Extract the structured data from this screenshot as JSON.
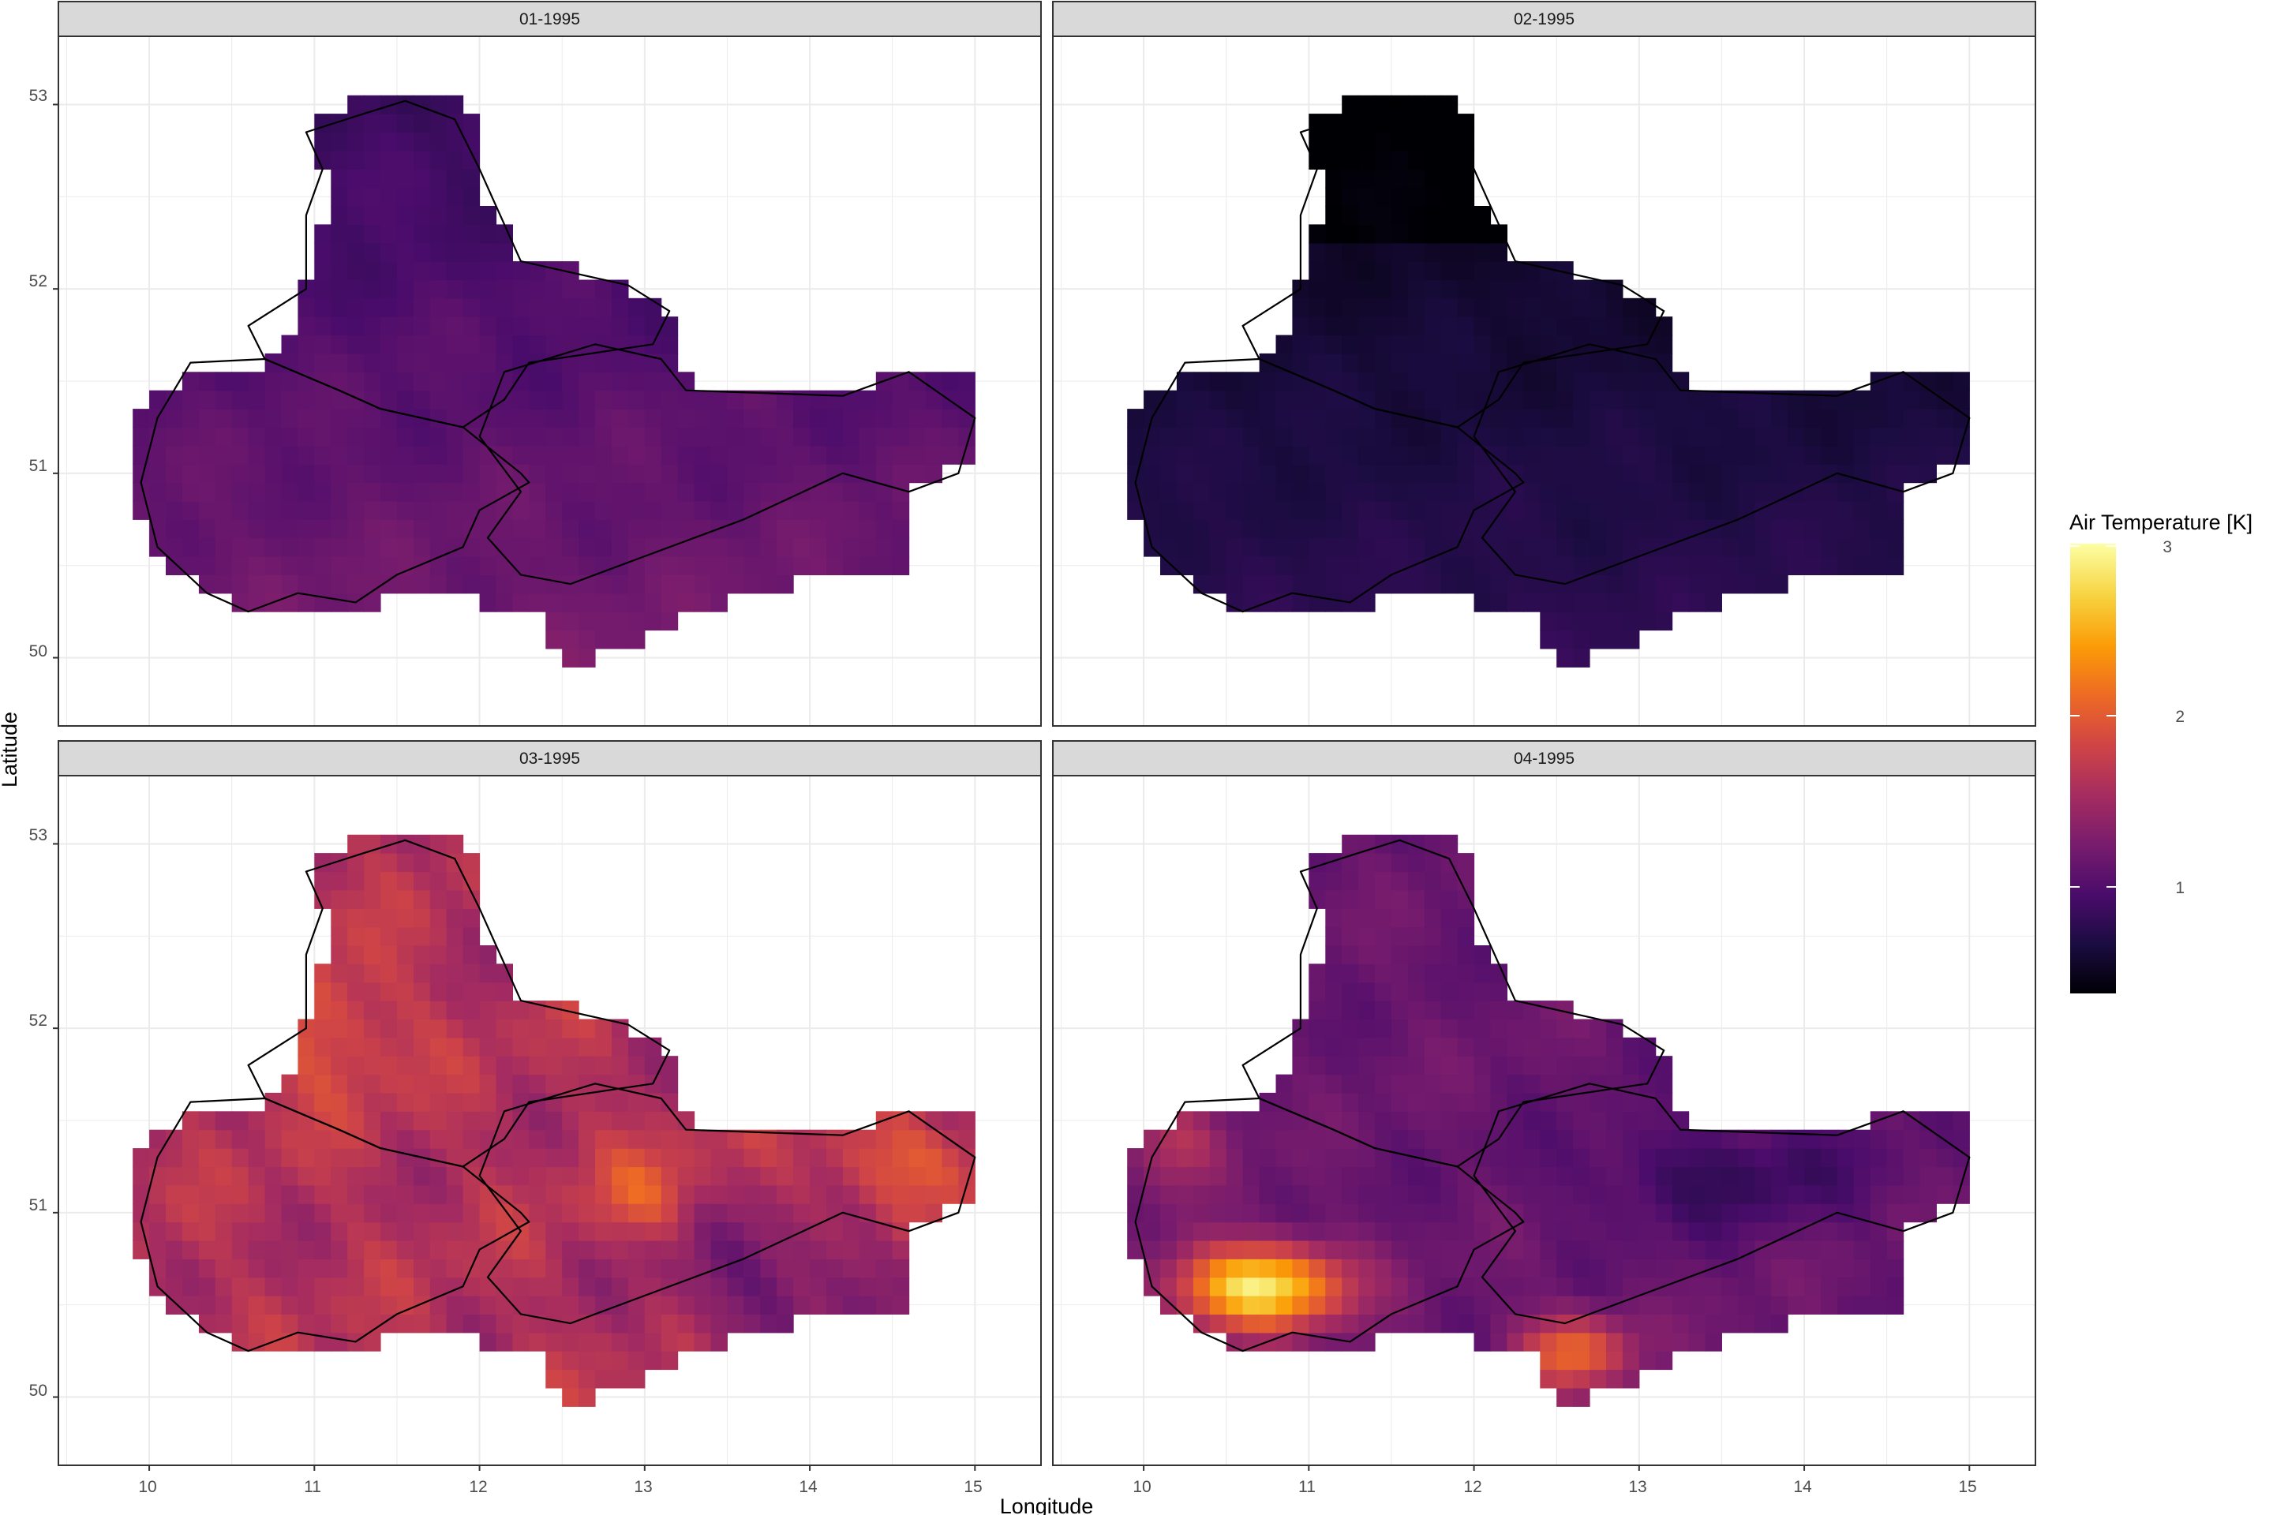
{
  "chart_data": {
    "type": "heatmap",
    "xlabel": "Longitude",
    "ylabel": "Latitude",
    "xlim": [
      9.45,
      15.4
    ],
    "ylim": [
      49.63,
      53.37
    ],
    "x_ticks": [
      10,
      11,
      12,
      13,
      14,
      15
    ],
    "y_ticks": [
      50,
      51,
      52,
      53
    ],
    "grid": true,
    "legend": {
      "title": "Air Temperature [K]",
      "position": "right",
      "range": [
        0.5,
        3.05
      ],
      "ticks": [
        1,
        2,
        3
      ],
      "colormap": "inferno",
      "stops": [
        "#000004",
        "#1b0c41",
        "#4a0c6b",
        "#781c6d",
        "#a52c60",
        "#cf4446",
        "#ed6925",
        "#fb9b06",
        "#f7d13d",
        "#fcffa4"
      ]
    },
    "panels": [
      {
        "label": "01-1995",
        "description": "uniform purple field",
        "base_value": 1.25,
        "variation": 0.35
      },
      {
        "label": "02-1995",
        "description": "very dark field, darkest in north",
        "base_value": 0.75,
        "variation": 0.35
      },
      {
        "label": "03-1995",
        "description": "warm field with orange hotspots in west and east",
        "base_value": 1.75,
        "variation": 0.6
      },
      {
        "label": "04-1995",
        "description": "purple field with yellow hotspot in southwest",
        "base_value": 1.25,
        "variation": 1.7
      }
    ]
  },
  "strips": {
    "p1": "01-1995",
    "p2": "02-1995",
    "p3": "03-1995",
    "p4": "04-1995"
  },
  "axes": {
    "x_title": "Longitude",
    "y_title": "Latitude",
    "x_ticks": [
      "10",
      "11",
      "12",
      "13",
      "14",
      "15"
    ],
    "y_ticks": [
      "50",
      "51",
      "52",
      "53"
    ]
  },
  "legend": {
    "title": "Air Temperature [K]",
    "tick_1": "1",
    "tick_2": "2",
    "tick_3": "3"
  }
}
